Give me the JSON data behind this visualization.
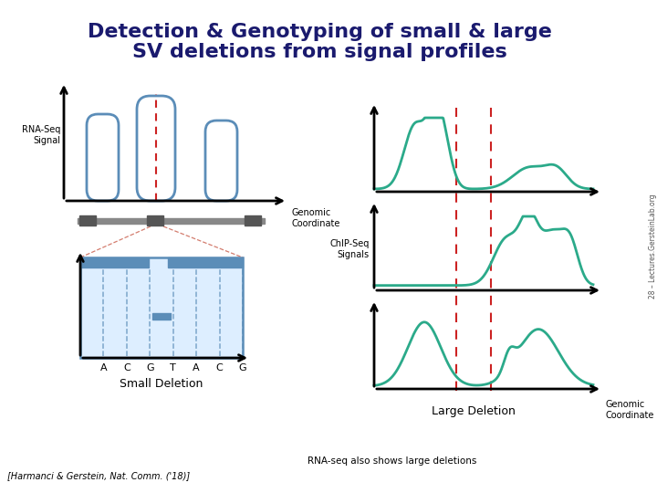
{
  "title_line1": "Detection & Genotyping of small & large",
  "title_line2": "SV deletions from signal profiles",
  "title_color": "#1a1a6e",
  "title_fontsize": 16,
  "bg_color": "#ffffff",
  "signal_color": "#5b8db8",
  "teal_color": "#2baa8a",
  "red_dashed_color": "#cc2222",
  "gray_color": "#888888",
  "footer_citation": "[Harmanci & Gerstein, Nat. Comm. ('18)]",
  "footer_note": "RNA-seq also shows large deletions",
  "side_text": "28 – Lectures.GersteinLab.org",
  "rna_seq_label": "RNA-Seq\nSignal",
  "genomic_coord_label": "Genomic\nCoordinate",
  "small_deletion_label": "Small Deletion",
  "chip_seq_label": "ChIP-Seq\nSignals",
  "large_deletion_label": "Large Deletion",
  "dna_letters": [
    "A",
    "C",
    "G",
    "T",
    "A",
    "C",
    "G"
  ]
}
